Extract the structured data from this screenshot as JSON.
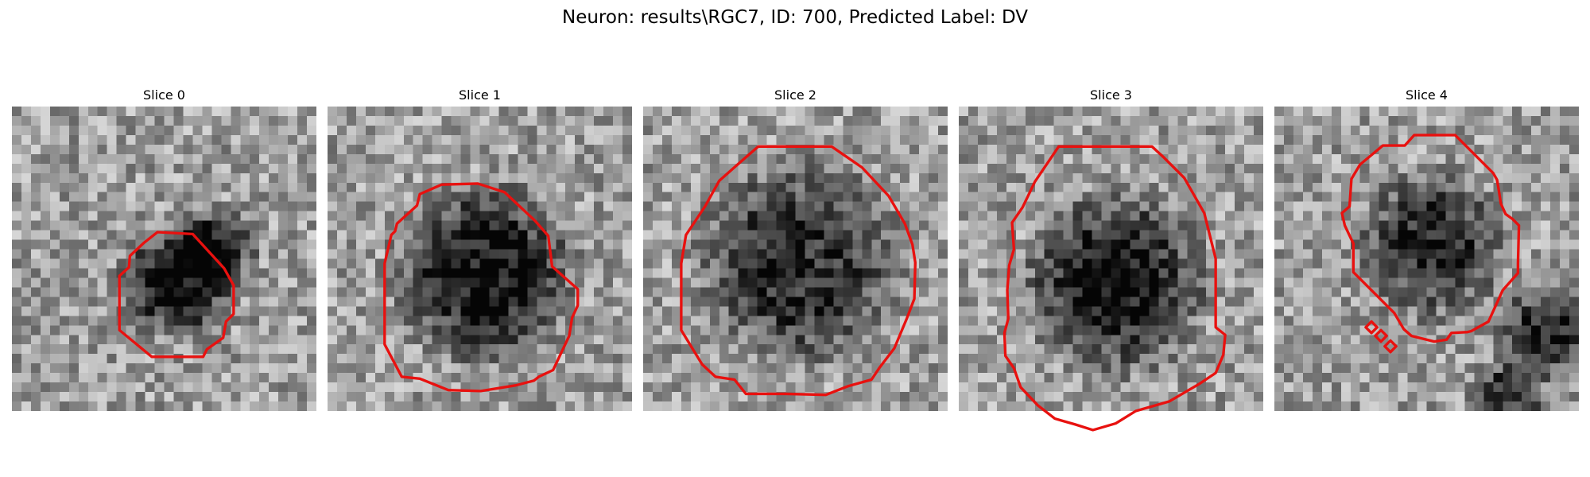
{
  "figure": {
    "title": "Neuron: results\\RGC7, ID: 700, Predicted Label: DV",
    "contour_color": "#e8110f"
  },
  "panels": [
    {
      "title": "Slice 0"
    },
    {
      "title": "Slice 1"
    },
    {
      "title": "Slice 2"
    },
    {
      "title": "Slice 3"
    },
    {
      "title": "Slice 4"
    }
  ]
}
